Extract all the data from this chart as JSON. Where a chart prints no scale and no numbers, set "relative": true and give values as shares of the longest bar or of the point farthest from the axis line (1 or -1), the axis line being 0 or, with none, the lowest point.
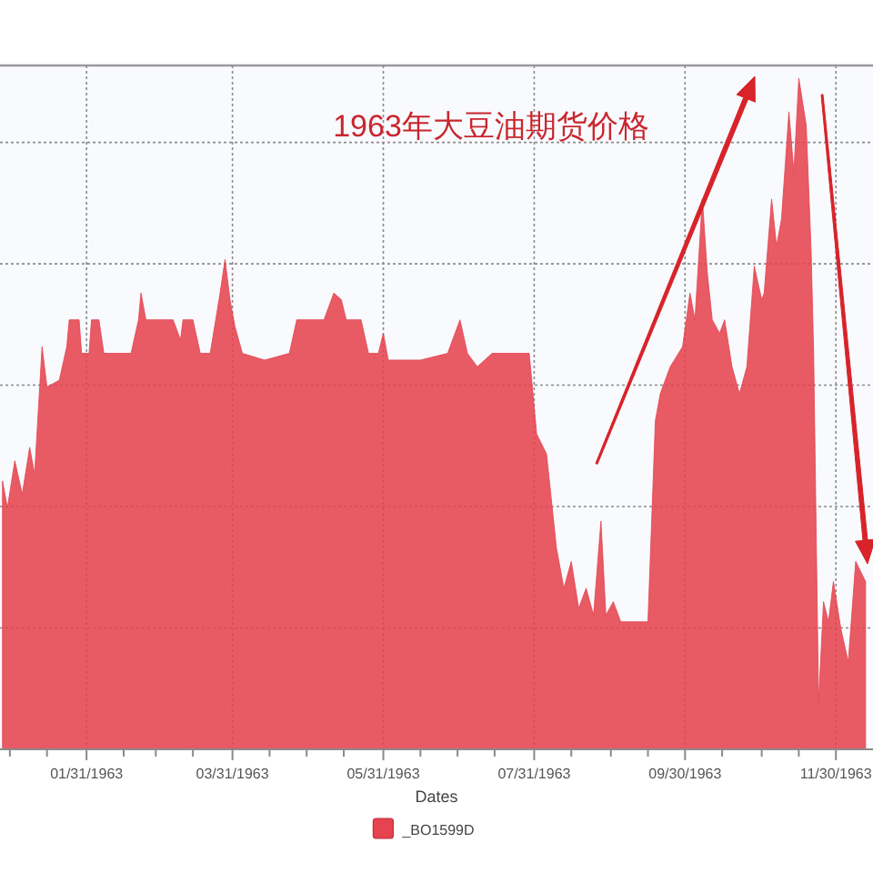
{
  "chart_data": {
    "type": "area",
    "title": "1963年大豆油期货价格",
    "xlabel": "Dates",
    "relative": true,
    "grid": true,
    "legend": "bottom",
    "xlim": [
      "1962-12-27",
      "1963-12-15"
    ],
    "xticks": [
      {
        "value": "1962-12-31",
        "label": null
      },
      {
        "value": "1963-01-15",
        "label": null
      },
      {
        "value": "1963-01-31",
        "label": "01/31/1963"
      },
      {
        "value": "1963-02-15",
        "label": null
      },
      {
        "value": "1963-02-28",
        "label": null
      },
      {
        "value": "1963-03-15",
        "label": null
      },
      {
        "value": "1963-03-31",
        "label": "03/31/1963"
      },
      {
        "value": "1963-04-15",
        "label": null
      },
      {
        "value": "1963-04-30",
        "label": null
      },
      {
        "value": "1963-05-15",
        "label": null
      },
      {
        "value": "1963-05-31",
        "label": "05/31/1963"
      },
      {
        "value": "1963-06-15",
        "label": null
      },
      {
        "value": "1963-06-30",
        "label": null
      },
      {
        "value": "1963-07-15",
        "label": null
      },
      {
        "value": "1963-07-31",
        "label": "07/31/1963"
      },
      {
        "value": "1963-08-15",
        "label": null
      },
      {
        "value": "1963-08-31",
        "label": null
      },
      {
        "value": "1963-09-15",
        "label": null
      },
      {
        "value": "1963-09-30",
        "label": "09/30/1963"
      },
      {
        "value": "1963-10-15",
        "label": null
      },
      {
        "value": "1963-10-31",
        "label": null
      },
      {
        "value": "1963-11-15",
        "label": null
      },
      {
        "value": "1963-11-30",
        "label": "11/30/1963"
      }
    ],
    "x": [
      "1962-12-28",
      "1962-12-30",
      "1963-01-02",
      "1963-01-05",
      "1963-01-08",
      "1963-01-10",
      "1963-01-13",
      "1963-01-15",
      "1963-01-20",
      "1963-01-23",
      "1963-01-24",
      "1963-01-28",
      "1963-01-29",
      "1963-02-01",
      "1963-02-02",
      "1963-02-05",
      "1963-02-07",
      "1963-02-11",
      "1963-02-14",
      "1963-02-18",
      "1963-02-21",
      "1963-02-22",
      "1963-02-24",
      "1963-03-07",
      "1963-03-10",
      "1963-03-11",
      "1963-03-15",
      "1963-03-18",
      "1963-03-22",
      "1963-03-26",
      "1963-03-28",
      "1963-03-30",
      "1963-04-01",
      "1963-04-04",
      "1963-04-13",
      "1963-04-23",
      "1963-04-26",
      "1963-05-07",
      "1963-05-11",
      "1963-05-14",
      "1963-05-16",
      "1963-05-22",
      "1963-05-25",
      "1963-05-29",
      "1963-05-31",
      "1963-06-02",
      "1963-06-15",
      "1963-06-26",
      "1963-07-01",
      "1963-07-04",
      "1963-07-08",
      "1963-07-14",
      "1963-07-21",
      "1963-07-29",
      "1963-08-01",
      "1963-08-05",
      "1963-08-09",
      "1963-08-12",
      "1963-08-15",
      "1963-08-18",
      "1963-08-21",
      "1963-08-24",
      "1963-08-27",
      "1963-08-29",
      "1963-09-01",
      "1963-09-04",
      "1963-09-15",
      "1963-09-18",
      "1963-09-20",
      "1963-09-24",
      "1963-09-29",
      "1963-10-02",
      "1963-10-04",
      "1963-10-07",
      "1963-10-09",
      "1963-10-11",
      "1963-10-14",
      "1963-10-16",
      "1963-10-19",
      "1963-10-22",
      "1963-10-25",
      "1963-10-28",
      "1963-10-31",
      "1963-11-01",
      "1963-11-04",
      "1963-11-06",
      "1963-11-08",
      "1963-11-11",
      "1963-11-13",
      "1963-11-15",
      "1963-11-18",
      "1963-11-20",
      "1963-11-21",
      "1963-11-23",
      "1963-11-25",
      "1963-11-27",
      "1963-11-29",
      "1963-12-02",
      "1963-12-05",
      "1963-12-08",
      "1963-12-12"
    ],
    "series": [
      {
        "name": "_BO1599D",
        "color": "#e5434f",
        "values": [
          0.4,
          0.36,
          0.43,
          0.38,
          0.45,
          0.41,
          0.6,
          0.54,
          0.55,
          0.6,
          0.64,
          0.64,
          0.59,
          0.59,
          0.64,
          0.64,
          0.59,
          0.59,
          0.59,
          0.59,
          0.64,
          0.68,
          0.64,
          0.64,
          0.61,
          0.64,
          0.64,
          0.59,
          0.59,
          0.68,
          0.73,
          0.67,
          0.63,
          0.59,
          0.58,
          0.59,
          0.64,
          0.64,
          0.68,
          0.67,
          0.64,
          0.64,
          0.59,
          0.59,
          0.62,
          0.58,
          0.58,
          0.59,
          0.64,
          0.59,
          0.57,
          0.59,
          0.59,
          0.59,
          0.47,
          0.44,
          0.3,
          0.24,
          0.28,
          0.21,
          0.24,
          0.2,
          0.34,
          0.2,
          0.22,
          0.19,
          0.19,
          0.49,
          0.53,
          0.57,
          0.6,
          0.68,
          0.64,
          0.82,
          0.71,
          0.64,
          0.62,
          0.64,
          0.57,
          0.53,
          0.57,
          0.72,
          0.67,
          0.68,
          0.82,
          0.75,
          0.79,
          0.95,
          0.86,
          1,
          0.93,
          0.74,
          0.59,
          0.07,
          0.22,
          0.19,
          0.25,
          0.18,
          0.13,
          0.28,
          0.25
        ]
      }
    ]
  }
}
